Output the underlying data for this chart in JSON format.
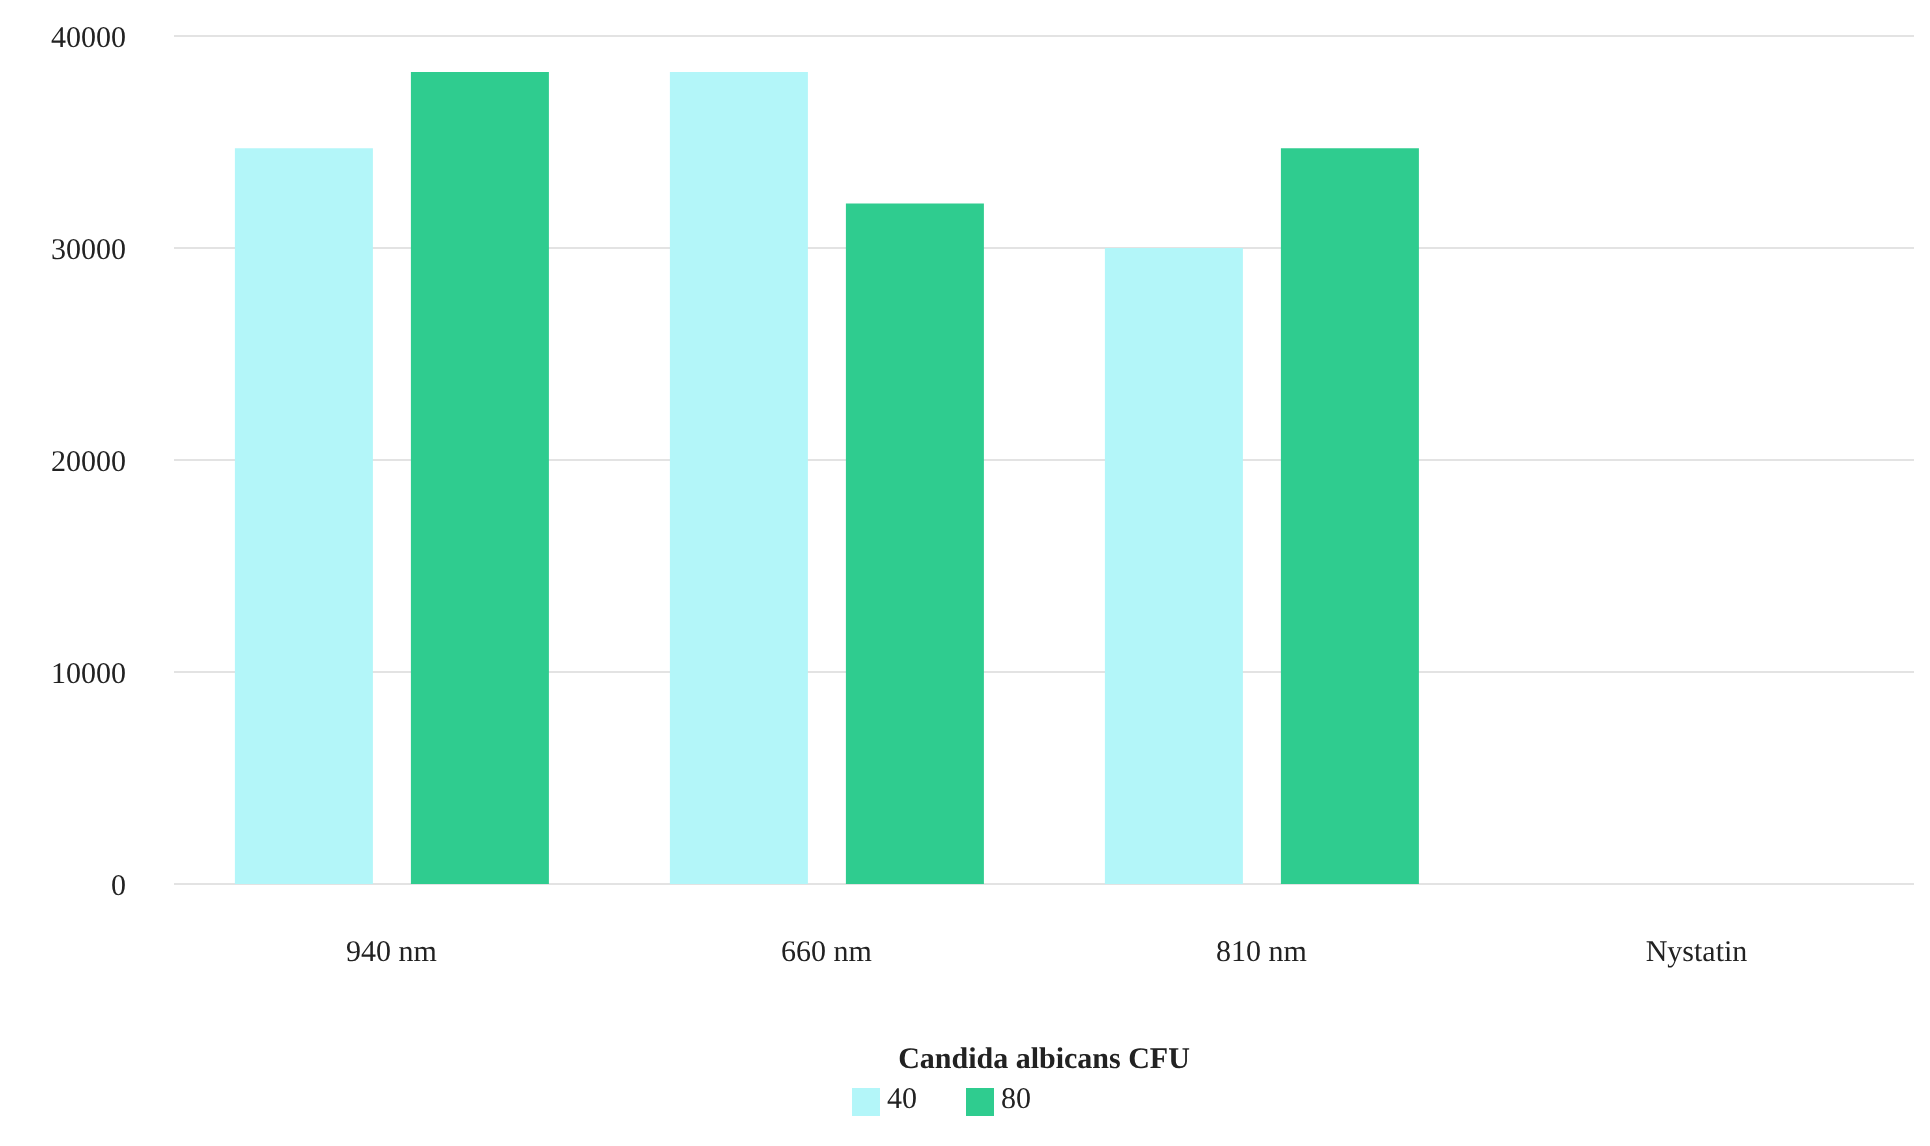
{
  "chart_data": {
    "type": "bar",
    "xlabel": "Candida albicans CFU",
    "categories": [
      "940 nm",
      "660 nm",
      "810 nm",
      "Nystatin"
    ],
    "series": [
      {
        "name": "40",
        "color": "#b3f6f9",
        "values": [
          34700,
          38300,
          30000,
          0
        ]
      },
      {
        "name": "80",
        "color": "#2fcc8f",
        "values": [
          38300,
          32100,
          34700,
          0
        ]
      }
    ],
    "ylim": [
      0,
      40000
    ],
    "yticks": [
      0,
      10000,
      20000,
      30000,
      40000
    ],
    "grid": "y",
    "legend": "bottom"
  }
}
